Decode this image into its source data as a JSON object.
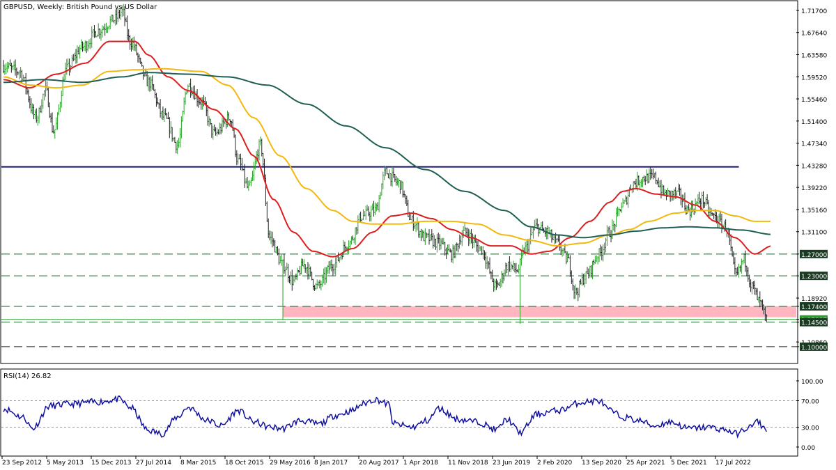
{
  "window": {
    "title": "GBPUSD, Weekly:  British Pound vs US Dollar"
  },
  "price_axis": {
    "ticks": [
      "1.71700",
      "1.67640",
      "1.63580",
      "1.59520",
      "1.55460",
      "1.51400",
      "1.47340",
      "1.43280",
      "1.39220",
      "1.35160",
      "1.31100",
      "1.27000",
      "1.23000",
      "1.18920",
      "1.17400",
      "1.15007",
      "1.14500",
      "1.10860",
      "1.10000"
    ],
    "boxed_labels": [
      "1.27000",
      "1.23000",
      "1.17400",
      "1.14500",
      "1.10000"
    ],
    "current_price": "1.15007"
  },
  "rsi_panel": {
    "title": "RSI(14) 26.82",
    "ticks": [
      "100.00",
      "70.00",
      "30.00",
      "0.00"
    ]
  },
  "time_axis": {
    "labels": [
      "23 Sep 2012",
      "5 May 2013",
      "15 Dec 2013",
      "27 Jul 2014",
      "8 Mar 2015",
      "18 Oct 2015",
      "29 May 2016",
      "8 Jan 2017",
      "20 Aug 2017",
      "1 Apr 2018",
      "11 Nov 2018",
      "23 Jun 2019",
      "2 Feb 2020",
      "13 Sep 2020",
      "25 Apr 2021",
      "5 Dec 2021",
      "17 Jul 2022"
    ]
  },
  "colors": {
    "candle_up": "#2ca02c",
    "candle_down": "#222222",
    "ma_fast": "#dd1e1e",
    "ma_mid": "#f2b90c",
    "ma_slow": "#1f5e52",
    "resistance": "#101070",
    "support_dashed": "#1e5e32",
    "zone": "#ffb6c1",
    "rsi_line": "#1010a0"
  },
  "chart_data": {
    "type": "line",
    "symbol": "GBPUSD",
    "timeframe": "Weekly",
    "title": "GBPUSD, Weekly:  British Pound vs US Dollar",
    "ylim": [
      1.0705,
      1.7335
    ],
    "x_dates": [
      "23 Sep 2012",
      "5 May 2013",
      "15 Dec 2013",
      "27 Jul 2014",
      "8 Mar 2015",
      "18 Oct 2015",
      "29 May 2016",
      "8 Jan 2017",
      "20 Aug 2017",
      "1 Apr 2018",
      "11 Nov 2018",
      "23 Jun 2019",
      "2 Feb 2020",
      "13 Sep 2020",
      "25 Apr 2021",
      "5 Dec 2021",
      "17 Jul 2022"
    ],
    "price_anchors": [
      [
        0,
        1.615
      ],
      [
        12,
        1.605
      ],
      [
        25,
        1.52
      ],
      [
        32,
        1.57
      ],
      [
        38,
        1.495
      ],
      [
        48,
        1.61
      ],
      [
        60,
        1.65
      ],
      [
        72,
        1.68
      ],
      [
        84,
        1.7
      ],
      [
        90,
        1.715
      ],
      [
        96,
        1.66
      ],
      [
        110,
        1.585
      ],
      [
        122,
        1.52
      ],
      [
        132,
        1.47
      ],
      [
        140,
        1.58
      ],
      [
        150,
        1.55
      ],
      [
        160,
        1.49
      ],
      [
        172,
        1.52
      ],
      [
        178,
        1.44
      ],
      [
        186,
        1.39
      ],
      [
        195,
        1.47
      ],
      [
        202,
        1.3
      ],
      [
        212,
        1.25
      ],
      [
        220,
        1.22
      ],
      [
        228,
        1.25
      ],
      [
        238,
        1.21
      ],
      [
        250,
        1.25
      ],
      [
        262,
        1.29
      ],
      [
        272,
        1.34
      ],
      [
        282,
        1.35
      ],
      [
        290,
        1.42
      ],
      [
        300,
        1.4
      ],
      [
        310,
        1.33
      ],
      [
        320,
        1.3
      ],
      [
        330,
        1.29
      ],
      [
        340,
        1.27
      ],
      [
        350,
        1.31
      ],
      [
        362,
        1.28
      ],
      [
        374,
        1.21
      ],
      [
        383,
        1.25
      ],
      [
        390,
        1.24
      ],
      [
        396,
        1.28
      ],
      [
        404,
        1.32
      ],
      [
        412,
        1.31
      ],
      [
        420,
        1.29
      ],
      [
        428,
        1.26
      ],
      [
        434,
        1.2
      ],
      [
        442,
        1.23
      ],
      [
        452,
        1.27
      ],
      [
        460,
        1.31
      ],
      [
        470,
        1.36
      ],
      [
        478,
        1.4
      ],
      [
        486,
        1.41
      ],
      [
        494,
        1.41
      ],
      [
        502,
        1.38
      ],
      [
        512,
        1.38
      ],
      [
        520,
        1.35
      ],
      [
        530,
        1.37
      ],
      [
        538,
        1.34
      ],
      [
        548,
        1.32
      ],
      [
        556,
        1.23
      ],
      [
        562,
        1.26
      ],
      [
        568,
        1.21
      ],
      [
        574,
        1.18
      ],
      [
        579,
        1.15
      ]
    ],
    "volatility_spikes": [
      {
        "x": 212,
        "low": 1.149
      },
      {
        "x": 392,
        "low": 1.142
      },
      {
        "x": 579,
        "low": 1.145
      }
    ],
    "moving_averages": [
      {
        "color_key": "ma_fast",
        "anchors": [
          [
            0,
            1.59
          ],
          [
            20,
            1.575
          ],
          [
            40,
            1.6
          ],
          [
            62,
            1.62
          ],
          [
            80,
            1.66
          ],
          [
            100,
            1.66
          ],
          [
            110,
            1.635
          ],
          [
            125,
            1.595
          ],
          [
            140,
            1.57
          ],
          [
            160,
            1.535
          ],
          [
            176,
            1.5
          ],
          [
            190,
            1.45
          ],
          [
            205,
            1.37
          ],
          [
            220,
            1.31
          ],
          [
            235,
            1.275
          ],
          [
            250,
            1.265
          ],
          [
            265,
            1.28
          ],
          [
            280,
            1.31
          ],
          [
            295,
            1.34
          ],
          [
            310,
            1.345
          ],
          [
            325,
            1.335
          ],
          [
            340,
            1.315
          ],
          [
            355,
            1.3
          ],
          [
            370,
            1.285
          ],
          [
            385,
            1.285
          ],
          [
            400,
            1.27
          ],
          [
            414,
            1.275
          ],
          [
            430,
            1.3
          ],
          [
            445,
            1.33
          ],
          [
            460,
            1.365
          ],
          [
            470,
            1.385
          ],
          [
            480,
            1.39
          ],
          [
            495,
            1.38
          ],
          [
            510,
            1.375
          ],
          [
            525,
            1.36
          ],
          [
            540,
            1.33
          ],
          [
            555,
            1.3
          ],
          [
            570,
            1.27
          ],
          [
            583,
            1.285
          ]
        ]
      },
      {
        "color_key": "ma_mid",
        "anchors": [
          [
            0,
            1.595
          ],
          [
            20,
            1.58
          ],
          [
            40,
            1.575
          ],
          [
            60,
            1.58
          ],
          [
            80,
            1.605
          ],
          [
            100,
            1.608
          ],
          [
            120,
            1.61
          ],
          [
            150,
            1.605
          ],
          [
            170,
            1.58
          ],
          [
            190,
            1.52
          ],
          [
            210,
            1.45
          ],
          [
            230,
            1.39
          ],
          [
            250,
            1.35
          ],
          [
            265,
            1.33
          ],
          [
            280,
            1.325
          ],
          [
            300,
            1.325
          ],
          [
            320,
            1.33
          ],
          [
            340,
            1.33
          ],
          [
            360,
            1.325
          ],
          [
            380,
            1.305
          ],
          [
            400,
            1.295
          ],
          [
            420,
            1.285
          ],
          [
            440,
            1.29
          ],
          [
            460,
            1.305
          ],
          [
            475,
            1.315
          ],
          [
            490,
            1.33
          ],
          [
            510,
            1.345
          ],
          [
            525,
            1.35
          ],
          [
            540,
            1.35
          ],
          [
            555,
            1.34
          ],
          [
            570,
            1.33
          ],
          [
            583,
            1.33
          ]
        ]
      },
      {
        "color_key": "ma_slow",
        "anchors": [
          [
            0,
            1.585
          ],
          [
            30,
            1.59
          ],
          [
            60,
            1.585
          ],
          [
            90,
            1.595
          ],
          [
            110,
            1.603
          ],
          [
            140,
            1.6
          ],
          [
            170,
            1.595
          ],
          [
            200,
            1.58
          ],
          [
            230,
            1.545
          ],
          [
            260,
            1.505
          ],
          [
            290,
            1.465
          ],
          [
            320,
            1.425
          ],
          [
            350,
            1.385
          ],
          [
            380,
            1.35
          ],
          [
            400,
            1.32
          ],
          [
            420,
            1.305
          ],
          [
            440,
            1.3
          ],
          [
            460,
            1.305
          ],
          [
            480,
            1.312
          ],
          [
            500,
            1.318
          ],
          [
            520,
            1.32
          ],
          [
            540,
            1.318
          ],
          [
            560,
            1.314
          ],
          [
            583,
            1.306
          ]
        ]
      }
    ],
    "horizontal_levels": [
      {
        "value": 1.43,
        "style": "solid",
        "color_key": "resistance"
      },
      {
        "value": 1.27,
        "style": "dashed",
        "color_key": "support_dashed"
      },
      {
        "value": 1.23,
        "style": "dashed",
        "color_key": "support_dashed"
      },
      {
        "value": 1.174,
        "style": "dashed",
        "color_key": "support_dashed"
      },
      {
        "value": 1.145,
        "style": "dashed",
        "color_key": "support_dashed"
      },
      {
        "value": 1.1,
        "style": "dashed",
        "color_key": "candle_down"
      },
      {
        "value": 1.15007,
        "style": "thin",
        "color_key": "candle_up"
      }
    ],
    "zone": {
      "from": 1.154,
      "to": 1.174,
      "start_week": 212
    },
    "rsi": {
      "ylim": [
        0,
        100
      ],
      "levels": [
        70,
        30
      ],
      "last": 26.82,
      "anchors": [
        [
          0,
          58
        ],
        [
          15,
          45
        ],
        [
          22,
          28
        ],
        [
          35,
          62
        ],
        [
          50,
          65
        ],
        [
          70,
          68
        ],
        [
          88,
          72
        ],
        [
          96,
          60
        ],
        [
          110,
          25
        ],
        [
          120,
          20
        ],
        [
          132,
          45
        ],
        [
          140,
          60
        ],
        [
          155,
          40
        ],
        [
          165,
          32
        ],
        [
          178,
          55
        ],
        [
          190,
          38
        ],
        [
          202,
          30
        ],
        [
          212,
          28
        ],
        [
          225,
          40
        ],
        [
          240,
          35
        ],
        [
          252,
          48
        ],
        [
          265,
          55
        ],
        [
          272,
          65
        ],
        [
          282,
          72
        ],
        [
          292,
          65
        ],
        [
          296,
          35
        ],
        [
          310,
          30
        ],
        [
          322,
          40
        ],
        [
          330,
          58
        ],
        [
          345,
          42
        ],
        [
          360,
          38
        ],
        [
          374,
          26
        ],
        [
          382,
          42
        ],
        [
          392,
          22
        ],
        [
          405,
          50
        ],
        [
          420,
          55
        ],
        [
          440,
          68
        ],
        [
          452,
          70
        ],
        [
          460,
          55
        ],
        [
          470,
          45
        ],
        [
          482,
          40
        ],
        [
          494,
          32
        ],
        [
          506,
          38
        ],
        [
          520,
          28
        ],
        [
          535,
          30
        ],
        [
          548,
          26
        ],
        [
          556,
          20
        ],
        [
          566,
          30
        ],
        [
          572,
          38
        ],
        [
          578,
          28
        ],
        [
          583,
          27
        ]
      ]
    }
  }
}
